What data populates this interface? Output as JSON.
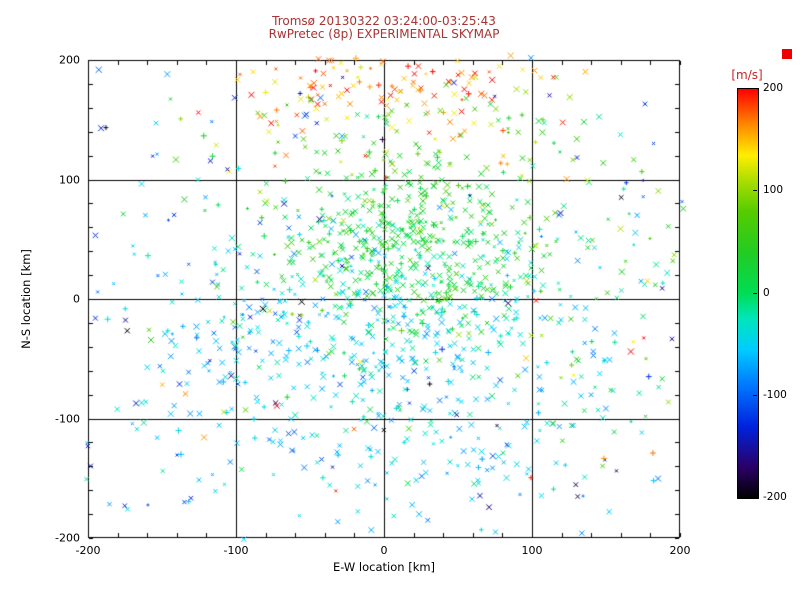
{
  "chart_data": {
    "type": "scatter",
    "title": "Tromsø 20130322 03:24:00-03:25:43",
    "subtitle": "RwPretec (8p) EXPERIMENTAL SKYMAP",
    "title_color": "#aa3333",
    "xlabel": "E-W location [km]",
    "ylabel": "N-S location [km]",
    "xlim": [
      -200,
      200
    ],
    "ylim": [
      -200,
      200
    ],
    "xticks": [
      -200,
      -100,
      0,
      100,
      200
    ],
    "yticks": [
      -200,
      -100,
      0,
      100,
      200
    ],
    "gridlines_at": [
      -100,
      0,
      100
    ],
    "grid": true,
    "marker": "x",
    "seed": 20130322,
    "colormap": [
      [
        -200,
        "#000000"
      ],
      [
        -170,
        "#2a0066"
      ],
      [
        -130,
        "#0022dd"
      ],
      [
        -90,
        "#0077ff"
      ],
      [
        -55,
        "#00ccff"
      ],
      [
        -25,
        "#00e6bb"
      ],
      [
        0,
        "#00dd55"
      ],
      [
        40,
        "#22cc22"
      ],
      [
        80,
        "#55cc00"
      ],
      [
        110,
        "#aadd00"
      ],
      [
        135,
        "#ffee00"
      ],
      [
        165,
        "#ff8800"
      ],
      [
        200,
        "#ff0000"
      ]
    ],
    "colorbar": {
      "label": "[m/s]",
      "label_color": "#cc2222",
      "min": -200,
      "max": 200,
      "ticks": [
        200,
        100,
        0,
        -100,
        -200
      ]
    },
    "corner_marker_color": "#ee0000",
    "point_distribution": [
      {
        "name": "green-core",
        "n": 430,
        "cx": 18,
        "cy": 48,
        "sx": 45,
        "sy": 40,
        "v": 30,
        "vs": 28
      },
      {
        "name": "cyan-cloud",
        "n": 400,
        "cx": 0,
        "cy": -40,
        "sx": 85,
        "sy": 55,
        "v": -55,
        "vs": 25
      },
      {
        "name": "teal-mix",
        "n": 150,
        "cx": 10,
        "cy": 5,
        "sx": 70,
        "sy": 45,
        "v": -15,
        "vs": 25
      },
      {
        "name": "north-red",
        "n": 120,
        "cx": 0,
        "cy": 178,
        "sx": 55,
        "sy": 20,
        "v": 165,
        "vs": 30
      },
      {
        "name": "north-band",
        "n": 85,
        "cx": 5,
        "cy": 128,
        "sx": 70,
        "sy": 22,
        "v": 90,
        "vs": 55
      },
      {
        "name": "south-sparse",
        "n": 90,
        "cx": 0,
        "cy": -140,
        "sx": 90,
        "sy": 35,
        "v": -55,
        "vs": 30
      },
      {
        "name": "dark-sparse",
        "n": 70,
        "uniform": true,
        "xr": [
          -195,
          195
        ],
        "yr": [
          -185,
          195
        ],
        "v": -140,
        "vs": 45
      },
      {
        "name": "right-green",
        "n": 70,
        "cx": 150,
        "cy": 40,
        "sx": 40,
        "sy": 90,
        "v": 30,
        "vs": 45
      },
      {
        "name": "left-sparse",
        "n": 60,
        "cx": -140,
        "cy": -20,
        "sx": 45,
        "sy": 90,
        "v": -60,
        "vs": 60
      },
      {
        "name": "red-outliers",
        "n": 14,
        "uniform": true,
        "xr": [
          -190,
          190
        ],
        "yr": [
          -180,
          60
        ],
        "v": 175,
        "vs": 25
      },
      {
        "name": "yellow-scatter",
        "n": 25,
        "uniform": true,
        "xr": [
          -150,
          190
        ],
        "yr": [
          -120,
          150
        ],
        "v": 110,
        "vs": 20
      }
    ]
  }
}
